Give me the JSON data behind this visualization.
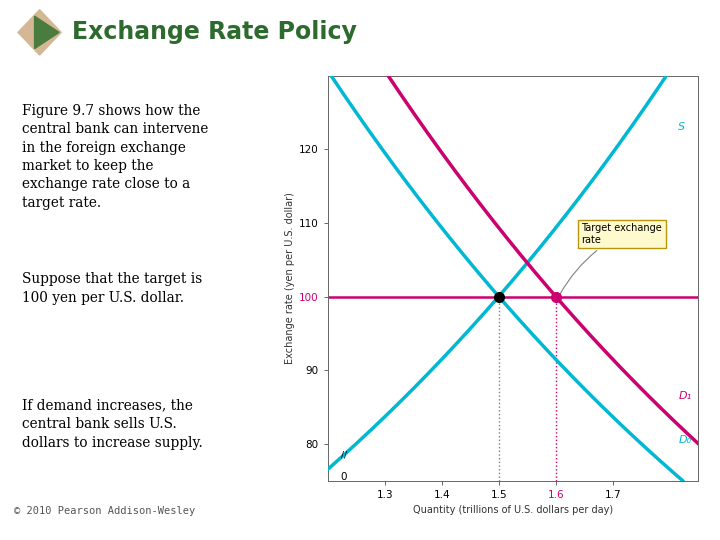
{
  "title": "Exchange Rate Policy",
  "title_color": "#2d6a2d",
  "bg_color": "#ffffff",
  "ylabel": "Exchange rate (yen per U.S. dollar)",
  "xlabel": "Quantity (trillions of U.S. dollars per day)",
  "ylim": [
    75,
    130
  ],
  "xlim": [
    1.2,
    1.85
  ],
  "yticks": [
    80,
    90,
    100,
    110,
    120
  ],
  "xticks": [
    1.3,
    1.4,
    1.5,
    1.6,
    1.7
  ],
  "target_rate": 100,
  "supply_color": "#00b8d4",
  "demand0_color": "#00b8d4",
  "demand1_color": "#cc006e",
  "target_line_color": "#cc006e",
  "eq0_x": 1.5,
  "eq0_y": 100,
  "eq1_x": 1.6,
  "eq1_y": 100,
  "text_blocks": [
    "Figure 9.7 shows how the\ncentral bank can intervene\nin the foreign exchange\nmarket to keep the\nexchange rate close to a\ntarget rate.",
    "Suppose that the target is\n100 yen per U.S. dollar.",
    "If demand increases, the\ncentral bank sells U.S.\ndollars to increase supply."
  ],
  "footer": "© 2010 Pearson Addison-Wesley",
  "annotation_box_text": "Target exchange\nrate",
  "annotation_box_color": "#fffacd",
  "s_label": "S",
  "d0_label": "D₀",
  "d1_label": "D₁",
  "icon_tan_color": "#d4b896",
  "icon_green_color": "#4a7c3f"
}
